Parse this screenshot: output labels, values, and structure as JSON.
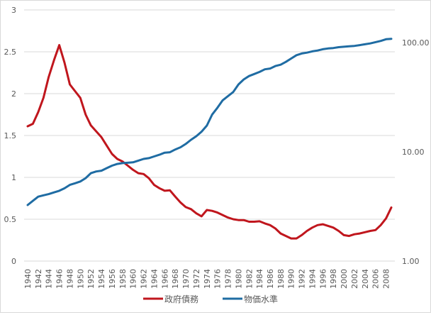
{
  "chart_data": {
    "type": "line",
    "title": "",
    "xlabel": "",
    "ylabel": "",
    "x": [
      1940,
      1941,
      1942,
      1943,
      1944,
      1945,
      1946,
      1947,
      1948,
      1949,
      1950,
      1951,
      1952,
      1953,
      1954,
      1955,
      1956,
      1957,
      1958,
      1959,
      1960,
      1961,
      1962,
      1963,
      1964,
      1965,
      1966,
      1967,
      1968,
      1969,
      1970,
      1971,
      1972,
      1973,
      1974,
      1975,
      1976,
      1977,
      1978,
      1979,
      1980,
      1981,
      1982,
      1983,
      1984,
      1985,
      1986,
      1987,
      1988,
      1989,
      1990,
      1991,
      1992,
      1993,
      1994,
      1995,
      1996,
      1997,
      1998,
      1999,
      2000,
      2001,
      2002,
      2003,
      2004,
      2005,
      2006,
      2007,
      2008,
      2009
    ],
    "x_tick_labels": [
      "1940",
      "1942",
      "1944",
      "1946",
      "1948",
      "1950",
      "1952",
      "1954",
      "1956",
      "1958",
      "1960",
      "1962",
      "1964",
      "1966",
      "1968",
      "1970",
      "1972",
      "1974",
      "1976",
      "1978",
      "1980",
      "1982",
      "1984",
      "1986",
      "1988",
      "1990",
      "1992",
      "1994",
      "1996",
      "1998",
      "2000",
      "2002",
      "2004",
      "2006",
      "2008"
    ],
    "y_left": {
      "ticks": [
        "0",
        "0.5",
        "1",
        "1.5",
        "2",
        "2.5",
        "3"
      ],
      "tick_values": [
        0,
        0.5,
        1,
        1.5,
        2,
        2.5,
        3
      ],
      "range": [
        0,
        3
      ]
    },
    "y_right": {
      "scale": "log",
      "ticks": [
        "1.00",
        "10.00",
        "100.00"
      ],
      "tick_values": [
        1,
        10,
        100
      ],
      "range": [
        1,
        199
      ]
    },
    "grid": true,
    "legend_position": "bottom",
    "series": [
      {
        "name": "政府債務",
        "axis": "left",
        "color": "#c0161d",
        "values": [
          1.61,
          1.64,
          1.78,
          1.95,
          2.2,
          2.4,
          2.58,
          2.37,
          2.11,
          2.03,
          1.95,
          1.75,
          1.62,
          1.55,
          1.48,
          1.38,
          1.28,
          1.22,
          1.19,
          1.14,
          1.09,
          1.05,
          1.04,
          0.99,
          0.91,
          0.87,
          0.84,
          0.845,
          0.77,
          0.7,
          0.645,
          0.62,
          0.57,
          0.535,
          0.61,
          0.6,
          0.58,
          0.55,
          0.52,
          0.5,
          0.49,
          0.49,
          0.47,
          0.47,
          0.475,
          0.45,
          0.43,
          0.39,
          0.33,
          0.3,
          0.27,
          0.27,
          0.31,
          0.36,
          0.4,
          0.43,
          0.44,
          0.42,
          0.4,
          0.36,
          0.31,
          0.3,
          0.32,
          0.33,
          0.345,
          0.36,
          0.37,
          0.43,
          0.51,
          0.64
        ]
      },
      {
        "name": "物価水準",
        "axis": "right",
        "color": "#1f6ca3",
        "values": [
          3.26,
          3.56,
          3.89,
          4.0,
          4.1,
          4.25,
          4.4,
          4.64,
          4.98,
          5.16,
          5.35,
          5.74,
          6.38,
          6.61,
          6.72,
          7.09,
          7.47,
          7.74,
          7.88,
          7.95,
          8.02,
          8.31,
          8.61,
          8.76,
          9.07,
          9.4,
          9.83,
          9.91,
          10.5,
          11.0,
          11.8,
          12.9,
          13.9,
          15.3,
          17.4,
          21.9,
          25.3,
          29.6,
          32.3,
          35.3,
          41.4,
          46.0,
          49.4,
          51.6,
          53.9,
          56.9,
          57.9,
          61.0,
          62.7,
          66.6,
          71.5,
          76.7,
          79.5,
          80.9,
          83.1,
          84.6,
          86.9,
          88.4,
          89.2,
          90.8,
          91.6,
          92.4,
          93.2,
          94.8,
          96.5,
          98.2,
          100.9,
          103.5,
          107.3,
          108.2
        ]
      }
    ]
  }
}
